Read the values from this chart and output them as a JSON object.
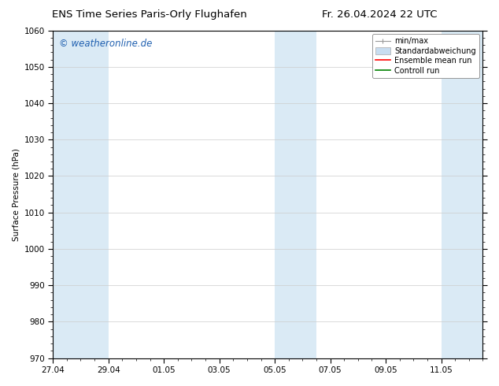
{
  "title_left": "ENS Time Series Paris-Orly Flughafen",
  "title_right": "Fr. 26.04.2024 22 UTC",
  "ylabel": "Surface Pressure (hPa)",
  "ylim": [
    970,
    1060
  ],
  "yticks": [
    970,
    980,
    990,
    1000,
    1010,
    1020,
    1030,
    1040,
    1050,
    1060
  ],
  "xtick_labels": [
    "27.04",
    "29.04",
    "01.05",
    "03.05",
    "05.05",
    "07.05",
    "09.05",
    "11.05"
  ],
  "xtick_positions": [
    0,
    2,
    4,
    6,
    8,
    10,
    12,
    14
  ],
  "xlim": [
    0,
    15.5
  ],
  "shaded_intervals": [
    [
      0.0,
      2.0
    ],
    [
      8.0,
      9.5
    ],
    [
      14.0,
      15.5
    ]
  ],
  "shade_color": "#daeaf5",
  "watermark": "© weatheronline.de",
  "watermark_color": "#2060b0",
  "legend_items": [
    {
      "label": "min/max",
      "color": "#aaaaaa",
      "type": "errorbar"
    },
    {
      "label": "Standardabweichung",
      "color": "#c8ddf0",
      "type": "rect"
    },
    {
      "label": "Ensemble mean run",
      "color": "red",
      "type": "line"
    },
    {
      "label": "Controll run",
      "color": "green",
      "type": "line"
    }
  ],
  "bg_color": "white",
  "plot_bg_color": "white",
  "font_size_title": 9.5,
  "font_size_axis": 7.5,
  "font_size_legend": 7,
  "font_size_watermark": 8.5
}
